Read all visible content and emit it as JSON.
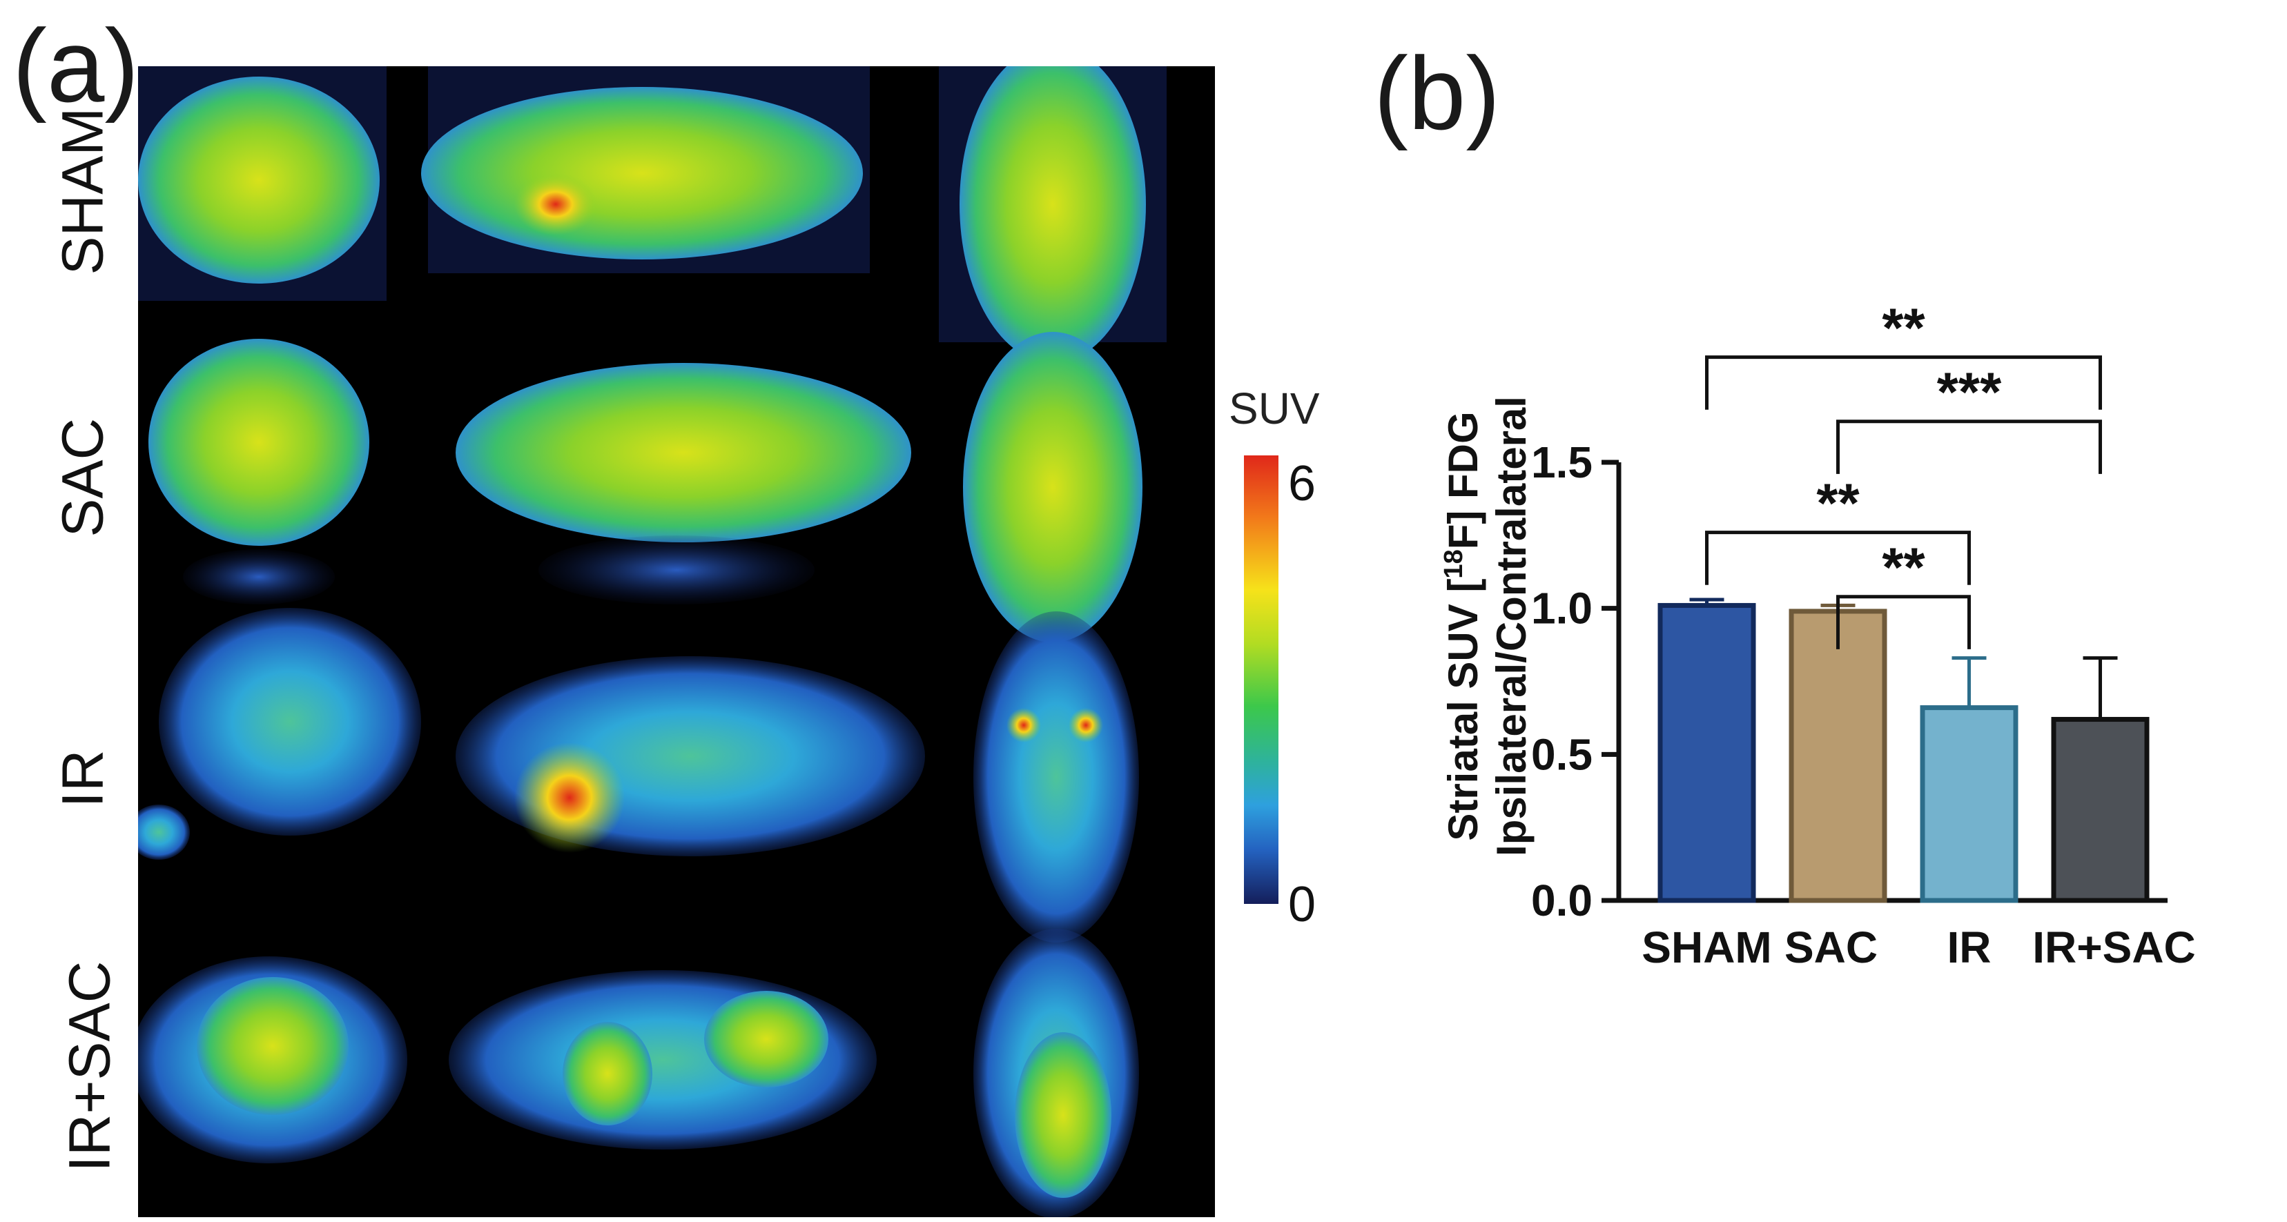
{
  "panel_a": {
    "label": "(a)",
    "rows": [
      {
        "label": "SHAM"
      },
      {
        "label": "SAC"
      },
      {
        "label": "IR"
      },
      {
        "label": "IR+SAC"
      }
    ],
    "colorbar": {
      "title": "SUV",
      "max_label": "6",
      "min_label": "0",
      "range": [
        0,
        6
      ],
      "colors": [
        "#141e5a",
        "#2462c0",
        "#2ea0de",
        "#2eb39a",
        "#3cc84b",
        "#b2dc22",
        "#f6e21a",
        "#f27a1a",
        "#e0281a"
      ]
    }
  },
  "panel_b": {
    "label": "(b)"
  },
  "chart_data": {
    "type": "bar",
    "categories": [
      "SHAM",
      "SAC",
      "IR",
      "IR+SAC"
    ],
    "values": [
      1.01,
      0.99,
      0.66,
      0.62
    ],
    "errors": [
      0.02,
      0.02,
      0.17,
      0.21
    ],
    "colors": [
      "#2d56a3",
      "#b89b6f",
      "#74b2cd",
      "#4d5157"
    ],
    "edge_colors": [
      "#122a5c",
      "#6f5a3a",
      "#2c6d8a",
      "#111111"
    ],
    "ylabel_line1": "Striatal SUV [",
    "ylabel_sup": "18",
    "ylabel_line1_end": "F] FDG",
    "ylabel_line2": "Ipsilateral/Contralateral",
    "ylim": [
      0,
      1.5
    ],
    "yticks": [
      "0.0",
      "0.5",
      "1.0",
      "1.5"
    ],
    "ytick_values": [
      0,
      0.5,
      1.0,
      1.5
    ],
    "significance": [
      {
        "from": "SHAM",
        "to": "IR+SAC",
        "label": "**"
      },
      {
        "from": "SAC",
        "to": "IR+SAC",
        "label": "***"
      },
      {
        "from": "SHAM",
        "to": "IR",
        "label": "**"
      },
      {
        "from": "SAC",
        "to": "IR",
        "label": "**"
      }
    ]
  }
}
